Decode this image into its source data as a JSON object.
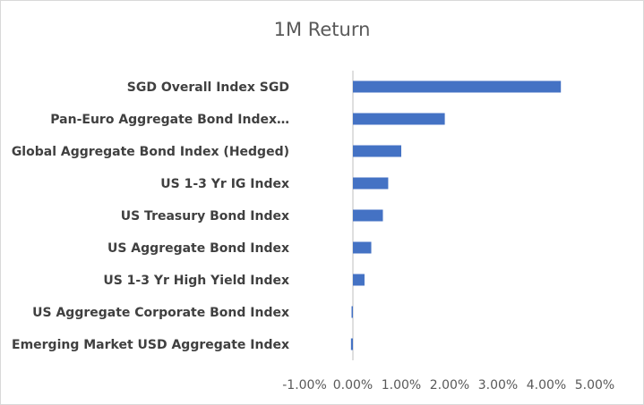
{
  "chart_data": {
    "type": "bar",
    "orientation": "horizontal",
    "title": "1M Return",
    "xlabel": "",
    "ylabel": "",
    "categories": [
      "SGD Overall Index SGD",
      "Pan-Euro Aggregate Bond Index…",
      "Global Aggregate Bond Index (Hedged)",
      "US 1-3 Yr IG Index",
      "US Treasury Bond Index",
      "US Aggregate Bond Index",
      "US 1-3 Yr High Yield Index",
      "US Aggregate Corporate Bond Index",
      "Emerging Market USD Aggregate Index"
    ],
    "values": [
      4.3,
      1.9,
      1.0,
      0.73,
      0.62,
      0.38,
      0.24,
      -0.02,
      -0.04
    ],
    "value_unit": "%",
    "xlim": [
      -1.0,
      5.0
    ],
    "x_ticks": [
      "-1.00%",
      "0.00%",
      "1.00%",
      "2.00%",
      "3.00%",
      "4.00%",
      "5.00%"
    ],
    "x_tick_values": [
      -1,
      0,
      1,
      2,
      3,
      4,
      5
    ],
    "bar_color": "#4472c4",
    "axis_color": "#bfbfbf",
    "grid": false,
    "legend": "none"
  }
}
